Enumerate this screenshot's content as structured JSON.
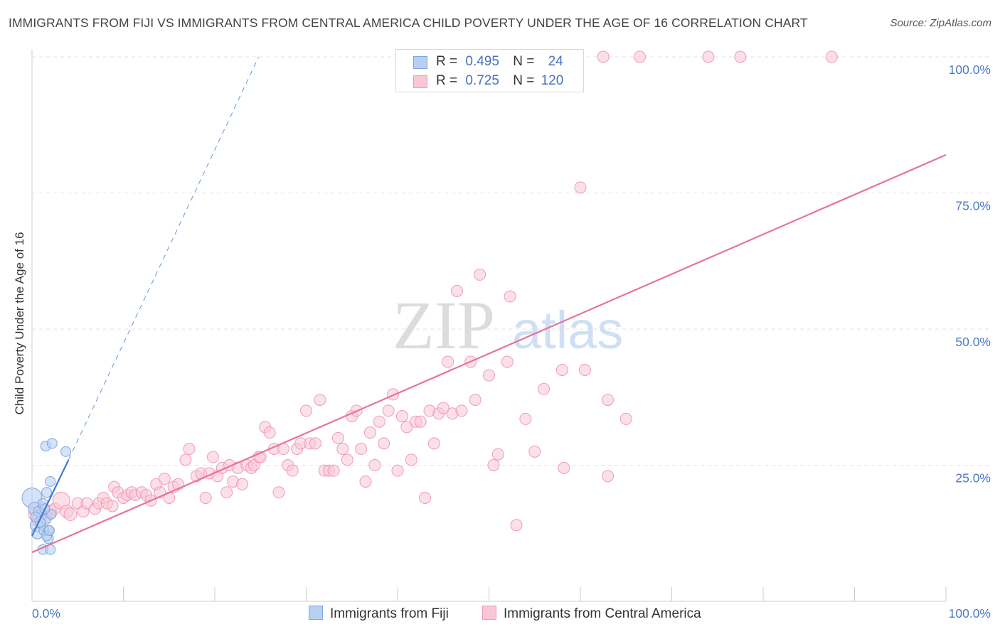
{
  "title": "IMMIGRANTS FROM FIJI VS IMMIGRANTS FROM CENTRAL AMERICA CHILD POVERTY UNDER THE AGE OF 16 CORRELATION CHART",
  "source": "Source: ZipAtlas.com",
  "watermark": {
    "zip": "ZIP",
    "atlas": "atlas"
  },
  "legend": {
    "fiji": {
      "r_label": "R =",
      "r_value": "0.495",
      "n_label": "N =",
      "n_value": "24"
    },
    "central_america": {
      "r_label": "R =",
      "r_value": "0.725",
      "n_label": "N =",
      "n_value": "120"
    }
  },
  "bottom_legend": {
    "fiji": "Immigrants from Fiji",
    "central_america": "Immigrants from Central America"
  },
  "colors": {
    "fiji_fill": "#b7d0f2",
    "fiji_stroke": "#7ea6df",
    "fiji_line": "#3a7bd5",
    "ca_fill": "#f9c6d6",
    "ca_stroke": "#f09ab5",
    "ca_line": "#e8739b",
    "tick_text": "#4a78c8",
    "grid": "#e2e2e2"
  },
  "chart_data": {
    "type": "scatter",
    "title": "IMMIGRANTS FROM FIJI VS IMMIGRANTS FROM CENTRAL AMERICA CHILD POVERTY UNDER THE AGE OF 16 CORRELATION CHART",
    "xlabel": "",
    "ylabel": "Child Poverty Under the Age of 16",
    "xlim": [
      0,
      100
    ],
    "ylim": [
      0,
      102
    ],
    "x_tick_labels": [
      "0.0%",
      "100.0%"
    ],
    "y_ticks": [
      25,
      50,
      75,
      100
    ],
    "y_tick_labels": [
      "25.0%",
      "50.0%",
      "75.0%",
      "100.0%"
    ],
    "grid": true,
    "legend_position": "top-center",
    "series": [
      {
        "name": "Immigrants from Fiji",
        "r": 0.495,
        "n": 24,
        "trend": {
          "x0": 0,
          "y0": 12,
          "x1": 4,
          "y1": 26
        },
        "trend_extension": {
          "x0": 4,
          "y0": 26,
          "x1": 24.8,
          "y1": 100
        },
        "points": [
          [
            0,
            19,
            14
          ],
          [
            0.3,
            17,
            9
          ],
          [
            0.5,
            14,
            9
          ],
          [
            0.6,
            12.5,
            8
          ],
          [
            1.0,
            16,
            8
          ],
          [
            1.2,
            18,
            7
          ],
          [
            1.3,
            13,
            7
          ],
          [
            1.5,
            15,
            7
          ],
          [
            1.6,
            20,
            7
          ],
          [
            1.8,
            13,
            7
          ],
          [
            2.0,
            22,
            7
          ],
          [
            2.1,
            16,
            7
          ],
          [
            1.5,
            28.5,
            7
          ],
          [
            2.2,
            29,
            7
          ],
          [
            3.7,
            27.5,
            7
          ],
          [
            1.8,
            11.5,
            7
          ],
          [
            1.2,
            9.5,
            7
          ],
          [
            2.0,
            9.5,
            7
          ],
          [
            0.9,
            14.5,
            7
          ],
          [
            1.6,
            12,
            7
          ],
          [
            0.7,
            16.5,
            7
          ],
          [
            1.4,
            17,
            7
          ],
          [
            0.4,
            15.5,
            7
          ],
          [
            1.9,
            13,
            7
          ]
        ]
      },
      {
        "name": "Immigrants from Central America",
        "r": 0.725,
        "n": 120,
        "trend": {
          "x0": 0,
          "y0": 9,
          "x1": 100,
          "y1": 82
        },
        "points": [
          [
            0.4,
            16,
            10
          ],
          [
            0.8,
            15,
            10
          ],
          [
            1.2,
            17,
            9
          ],
          [
            1.5,
            15.5,
            9
          ],
          [
            2.0,
            16.5,
            9
          ],
          [
            2.5,
            17,
            8
          ],
          [
            3.2,
            18.5,
            12
          ],
          [
            3.8,
            16.5,
            9
          ],
          [
            4.2,
            16,
            9
          ],
          [
            5.0,
            18,
            8
          ],
          [
            5.6,
            16.5,
            8
          ],
          [
            6.0,
            18,
            8
          ],
          [
            6.9,
            17,
            8
          ],
          [
            7.3,
            18,
            8
          ],
          [
            7.8,
            19,
            8
          ],
          [
            8.2,
            18,
            8
          ],
          [
            8.8,
            17.5,
            8
          ],
          [
            9.0,
            21,
            8
          ],
          [
            9.4,
            20,
            8
          ],
          [
            10.0,
            19,
            8
          ],
          [
            10.4,
            19.5,
            8
          ],
          [
            10.9,
            20,
            8
          ],
          [
            11.3,
            19.5,
            8
          ],
          [
            12.0,
            20,
            8
          ],
          [
            12.5,
            19.5,
            8
          ],
          [
            13.0,
            18.5,
            8
          ],
          [
            13.6,
            21.5,
            8
          ],
          [
            14.0,
            20,
            8
          ],
          [
            14.5,
            22.5,
            8
          ],
          [
            15.0,
            19,
            8
          ],
          [
            15.5,
            21,
            8
          ],
          [
            16.0,
            21.5,
            8
          ],
          [
            16.8,
            26,
            8
          ],
          [
            17.2,
            28,
            8
          ],
          [
            18.0,
            23,
            8
          ],
          [
            18.5,
            23.5,
            8
          ],
          [
            19.0,
            19,
            8
          ],
          [
            19.4,
            23.5,
            8
          ],
          [
            19.8,
            26.5,
            8
          ],
          [
            20.3,
            23,
            8
          ],
          [
            20.8,
            24.5,
            8
          ],
          [
            21.3,
            20,
            8
          ],
          [
            21.6,
            25,
            8
          ],
          [
            22.0,
            22,
            8
          ],
          [
            22.5,
            24.5,
            8
          ],
          [
            23.0,
            21.5,
            8
          ],
          [
            23.5,
            25,
            8
          ],
          [
            24.0,
            24.5,
            8
          ],
          [
            24.3,
            25,
            8
          ],
          [
            24.8,
            26.5,
            8
          ],
          [
            25.0,
            26.5,
            8
          ],
          [
            25.5,
            32,
            8
          ],
          [
            26.0,
            31,
            8
          ],
          [
            26.5,
            28,
            8
          ],
          [
            27.0,
            20,
            8
          ],
          [
            27.5,
            28,
            8
          ],
          [
            28.0,
            25,
            8
          ],
          [
            28.5,
            24,
            8
          ],
          [
            29.0,
            28,
            8
          ],
          [
            29.4,
            29,
            8
          ],
          [
            30.0,
            35,
            8
          ],
          [
            30.4,
            29,
            8
          ],
          [
            31.0,
            29,
            8
          ],
          [
            31.5,
            37,
            8
          ],
          [
            32.0,
            24,
            8
          ],
          [
            32.5,
            24,
            8
          ],
          [
            33.0,
            24,
            8
          ],
          [
            33.5,
            30,
            8
          ],
          [
            34.0,
            28,
            8
          ],
          [
            34.5,
            26,
            8
          ],
          [
            35.0,
            34,
            8
          ],
          [
            35.5,
            35,
            8
          ],
          [
            36.0,
            28,
            8
          ],
          [
            36.5,
            22,
            8
          ],
          [
            37.0,
            31,
            8
          ],
          [
            37.5,
            25,
            8
          ],
          [
            38.0,
            33,
            8
          ],
          [
            38.5,
            29,
            8
          ],
          [
            39.0,
            35,
            8
          ],
          [
            39.5,
            38,
            8
          ],
          [
            40.0,
            24,
            8
          ],
          [
            40.5,
            34,
            8
          ],
          [
            41.0,
            32,
            8
          ],
          [
            41.5,
            26,
            8
          ],
          [
            42.0,
            33,
            8
          ],
          [
            42.5,
            33,
            8
          ],
          [
            43.0,
            19,
            8
          ],
          [
            43.5,
            35,
            8
          ],
          [
            44.0,
            29,
            8
          ],
          [
            44.5,
            34.5,
            8
          ],
          [
            45.0,
            35.5,
            8
          ],
          [
            45.5,
            44,
            8
          ],
          [
            46.0,
            34.5,
            8
          ],
          [
            46.5,
            57,
            8
          ],
          [
            47.0,
            35,
            8
          ],
          [
            48.0,
            44,
            8
          ],
          [
            48.5,
            37,
            8
          ],
          [
            49.0,
            60,
            8
          ],
          [
            50.0,
            41.5,
            8
          ],
          [
            50.5,
            25,
            8
          ],
          [
            51.0,
            27,
            8
          ],
          [
            52.0,
            44,
            8
          ],
          [
            52.3,
            56,
            8
          ],
          [
            53.0,
            14,
            8
          ],
          [
            54.0,
            33.5,
            8
          ],
          [
            55.0,
            27.5,
            8
          ],
          [
            56.0,
            39,
            8
          ],
          [
            58.0,
            42.5,
            8
          ],
          [
            58.2,
            24.5,
            8
          ],
          [
            60.0,
            76,
            8
          ],
          [
            60.5,
            42.5,
            8
          ],
          [
            63.0,
            37,
            8
          ],
          [
            63.0,
            23,
            8
          ],
          [
            65.0,
            33.5,
            8
          ],
          [
            62.5,
            100,
            8
          ],
          [
            66.5,
            100,
            8
          ],
          [
            74.0,
            100,
            8
          ],
          [
            77.5,
            100,
            8
          ],
          [
            87.5,
            100,
            8
          ]
        ]
      }
    ]
  }
}
